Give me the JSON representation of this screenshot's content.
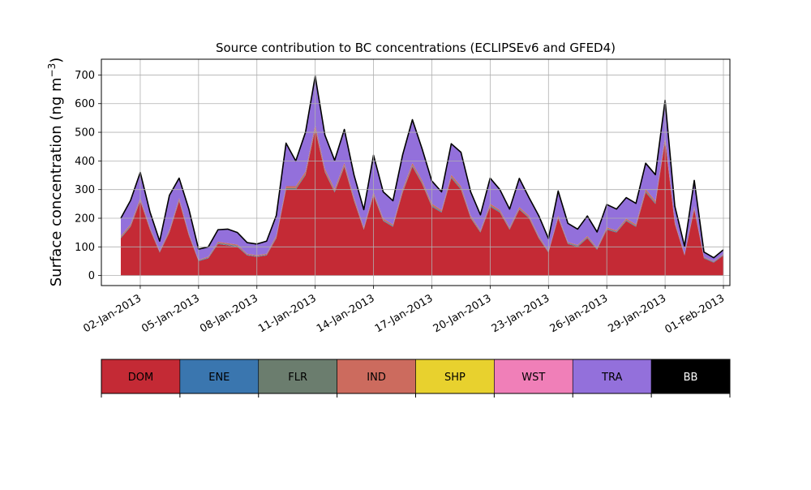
{
  "chart_data": {
    "type": "area",
    "stacked": true,
    "title": "Source contribution to BC concentrations (ECLIPSEv6 and GFED4)",
    "xlabel": "",
    "ylabel": "Surface concentration (ng m",
    "ylabel_sup": "−3",
    "ylabel_close": ")",
    "ylim": [
      -35,
      755
    ],
    "yticks": [
      0,
      100,
      200,
      300,
      400,
      500,
      600,
      700
    ],
    "xlim": [
      "2012-12-31T00:00",
      "2013-02-01T08:00"
    ],
    "xtick_labels": [
      "02-Jan-2013",
      "05-Jan-2013",
      "08-Jan-2013",
      "11-Jan-2013",
      "14-Jan-2013",
      "17-Jan-2013",
      "20-Jan-2013",
      "23-Jan-2013",
      "26-Jan-2013",
      "29-Jan-2013",
      "01-Feb-2013"
    ],
    "grid": true,
    "x": [
      "2013-01-01T00:00",
      "2013-01-01T12:00",
      "2013-01-02T00:00",
      "2013-01-02T12:00",
      "2013-01-03T00:00",
      "2013-01-03T12:00",
      "2013-01-04T00:00",
      "2013-01-04T12:00",
      "2013-01-05T00:00",
      "2013-01-05T12:00",
      "2013-01-06T00:00",
      "2013-01-06T12:00",
      "2013-01-07T00:00",
      "2013-01-07T12:00",
      "2013-01-08T00:00",
      "2013-01-08T12:00",
      "2013-01-09T00:00",
      "2013-01-09T12:00",
      "2013-01-10T00:00",
      "2013-01-10T12:00",
      "2013-01-11T00:00",
      "2013-01-11T12:00",
      "2013-01-12T00:00",
      "2013-01-12T12:00",
      "2013-01-13T00:00",
      "2013-01-13T12:00",
      "2013-01-14T00:00",
      "2013-01-14T12:00",
      "2013-01-15T00:00",
      "2013-01-15T12:00",
      "2013-01-16T00:00",
      "2013-01-16T12:00",
      "2013-01-17T00:00",
      "2013-01-17T12:00",
      "2013-01-18T00:00",
      "2013-01-18T12:00",
      "2013-01-19T00:00",
      "2013-01-19T12:00",
      "2013-01-20T00:00",
      "2013-01-20T12:00",
      "2013-01-21T00:00",
      "2013-01-21T12:00",
      "2013-01-22T00:00",
      "2013-01-22T12:00",
      "2013-01-23T00:00",
      "2013-01-23T12:00",
      "2013-01-24T00:00",
      "2013-01-24T12:00",
      "2013-01-25T00:00",
      "2013-01-25T12:00",
      "2013-01-26T00:00",
      "2013-01-26T12:00",
      "2013-01-27T00:00",
      "2013-01-27T12:00",
      "2013-01-28T00:00",
      "2013-01-28T12:00",
      "2013-01-29T00:00",
      "2013-01-29T12:00",
      "2013-01-30T00:00",
      "2013-01-30T12:00",
      "2013-01-31T00:00",
      "2013-01-31T12:00",
      "2013-02-01T00:00"
    ],
    "series": [
      {
        "name": "DOM",
        "color": "#c42a35",
        "values": [
          130,
          170,
          260,
          160,
          80,
          150,
          260,
          140,
          50,
          60,
          110,
          105,
          100,
          70,
          65,
          70,
          130,
          300,
          300,
          350,
          510,
          360,
          290,
          380,
          260,
          160,
          280,
          190,
          170,
          290,
          380,
          320,
          240,
          220,
          340,
          300,
          200,
          150,
          240,
          220,
          160,
          230,
          200,
          130,
          80,
          200,
          110,
          100,
          130,
          90,
          160,
          150,
          190,
          170,
          290,
          250,
          470,
          180,
          70,
          230,
          60,
          45,
          70
        ]
      },
      {
        "name": "ENE",
        "color": "#3a76af",
        "values": [
          2,
          2,
          2,
          2,
          2,
          2,
          2,
          2,
          2,
          2,
          2,
          2,
          2,
          2,
          2,
          2,
          2,
          2,
          2,
          2,
          2,
          2,
          2,
          2,
          2,
          2,
          2,
          2,
          2,
          2,
          2,
          2,
          2,
          2,
          2,
          2,
          2,
          2,
          2,
          2,
          2,
          2,
          2,
          2,
          2,
          2,
          2,
          2,
          2,
          2,
          2,
          2,
          2,
          2,
          2,
          2,
          2,
          2,
          2,
          2,
          2,
          2,
          2
        ]
      },
      {
        "name": "FLR",
        "color": "#6b7d6e",
        "values": [
          2,
          2,
          2,
          2,
          1,
          2,
          2,
          2,
          1,
          1,
          2,
          2,
          2,
          1,
          1,
          1,
          2,
          3,
          3,
          3,
          4,
          3,
          3,
          3,
          3,
          2,
          3,
          2,
          2,
          3,
          3,
          3,
          3,
          2,
          3,
          3,
          2,
          2,
          3,
          2,
          2,
          2,
          2,
          2,
          1,
          2,
          2,
          2,
          2,
          2,
          2,
          2,
          2,
          2,
          3,
          3,
          4,
          2,
          1,
          3,
          1,
          1,
          1
        ]
      },
      {
        "name": "IND",
        "color": "#cc6b5e",
        "values": [
          4,
          5,
          6,
          4,
          3,
          5,
          6,
          4,
          2,
          3,
          4,
          4,
          4,
          3,
          3,
          3,
          5,
          7,
          7,
          8,
          10,
          8,
          7,
          8,
          6,
          4,
          6,
          5,
          4,
          7,
          8,
          7,
          6,
          5,
          7,
          7,
          5,
          4,
          6,
          5,
          4,
          5,
          5,
          4,
          3,
          5,
          3,
          3,
          4,
          3,
          4,
          4,
          5,
          5,
          7,
          6,
          9,
          5,
          2,
          6,
          2,
          2,
          2
        ]
      },
      {
        "name": "SHP",
        "color": "#e8d12e",
        "values": [
          0,
          0,
          0,
          0,
          0,
          0,
          0,
          0,
          0,
          0,
          0,
          0,
          0,
          0,
          0,
          0,
          0,
          0,
          0,
          0,
          0,
          0,
          0,
          0,
          0,
          0,
          0,
          0,
          0,
          0,
          0,
          0,
          0,
          0,
          0,
          0,
          0,
          0,
          0,
          0,
          0,
          0,
          0,
          0,
          0,
          0,
          0,
          0,
          0,
          0,
          0,
          0,
          0,
          0,
          0,
          0,
          0,
          0,
          0,
          0,
          0,
          0,
          0
        ]
      },
      {
        "name": "WST",
        "color": "#f07fb8",
        "values": [
          0,
          0,
          0,
          0,
          0,
          0,
          0,
          0,
          0,
          0,
          0,
          0,
          0,
          0,
          0,
          0,
          0,
          0,
          0,
          0,
          0,
          0,
          0,
          0,
          0,
          0,
          0,
          0,
          0,
          0,
          0,
          0,
          0,
          0,
          0,
          0,
          0,
          0,
          0,
          0,
          0,
          0,
          0,
          0,
          0,
          0,
          0,
          0,
          0,
          0,
          0,
          0,
          0,
          0,
          0,
          0,
          0,
          0,
          0,
          0,
          0,
          0,
          0
        ]
      },
      {
        "name": "TRA",
        "color": "#9370db",
        "values": [
          62,
          83,
          90,
          54,
          34,
          121,
          70,
          84,
          37,
          34,
          42,
          49,
          42,
          39,
          39,
          44,
          71,
          150,
          88,
          137,
          170,
          117,
          100,
          117,
          79,
          62,
          129,
          93,
          83,
          120,
          151,
          110,
          79,
          63,
          108,
          118,
          83,
          54,
          89,
          71,
          64,
          100,
          63,
          71,
          43,
          86,
          65,
          55,
          70,
          55,
          80,
          74,
          73,
          73,
          90,
          91,
          127,
          53,
          27,
          91,
          17,
          12,
          15
        ]
      },
      {
        "name": "BB",
        "color": "#000000",
        "values": [
          0,
          0,
          0,
          0,
          0,
          0,
          0,
          0,
          0,
          0,
          0,
          0,
          0,
          0,
          0,
          0,
          0,
          0,
          0,
          0,
          0,
          0,
          0,
          0,
          0,
          0,
          0,
          0,
          0,
          0,
          0,
          0,
          0,
          0,
          0,
          0,
          0,
          0,
          0,
          0,
          0,
          0,
          0,
          0,
          0,
          0,
          0,
          0,
          0,
          0,
          0,
          0,
          0,
          0,
          0,
          0,
          0,
          0,
          0,
          0,
          0,
          0,
          0
        ]
      }
    ]
  },
  "legend": {
    "entries": [
      {
        "label": "DOM",
        "color": "#c42a35",
        "text_color": "#000000"
      },
      {
        "label": "ENE",
        "color": "#3a76af",
        "text_color": "#000000"
      },
      {
        "label": "FLR",
        "color": "#6b7d6e",
        "text_color": "#000000"
      },
      {
        "label": "IND",
        "color": "#cc6b5e",
        "text_color": "#000000"
      },
      {
        "label": "SHP",
        "color": "#e8d12e",
        "text_color": "#000000"
      },
      {
        "label": "WST",
        "color": "#f07fb8",
        "text_color": "#000000"
      },
      {
        "label": "TRA",
        "color": "#9370db",
        "text_color": "#000000"
      },
      {
        "label": "BB",
        "color": "#000000",
        "text_color": "#ffffff"
      }
    ]
  }
}
